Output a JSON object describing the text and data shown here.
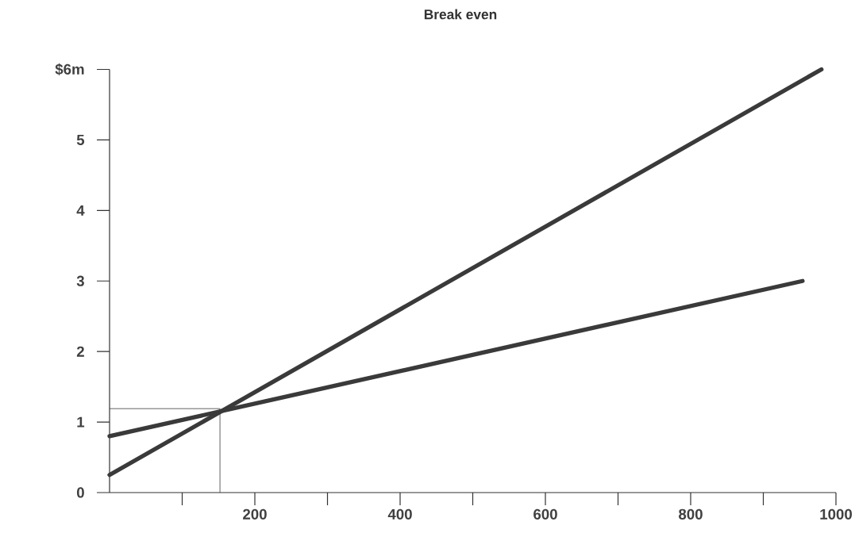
{
  "chart_data": {
    "type": "line",
    "title": "Break even",
    "series": [
      {
        "color": "#3a3a3a",
        "x": [
          0,
          980
        ],
        "values": [
          0.25,
          6
        ]
      },
      {
        "color": "#3a3a3a",
        "x": [
          0,
          954
        ],
        "values": [
          0.8,
          3
        ]
      }
    ],
    "xlim": [
      0,
      1000
    ],
    "ylim": [
      0,
      6
    ],
    "xticks": [
      {
        "value": 100,
        "label": null
      },
      200,
      {
        "value": 300,
        "label": null
      },
      400,
      {
        "value": 500,
        "label": null
      },
      600,
      {
        "value": 700,
        "label": null
      },
      800,
      {
        "value": 900,
        "label": null
      },
      1000
    ],
    "yticks": [
      0,
      1,
      2,
      3,
      4,
      5,
      {
        "value": 6,
        "label": "$6m"
      }
    ],
    "ref_lines": [
      {
        "axis": "x",
        "value": 152,
        "color": "#3a3a3a"
      },
      {
        "axis": "y",
        "value": 1.19,
        "color": "#3a3a3a"
      }
    ],
    "grid": false,
    "marker": "none",
    "line_style": "solid"
  }
}
